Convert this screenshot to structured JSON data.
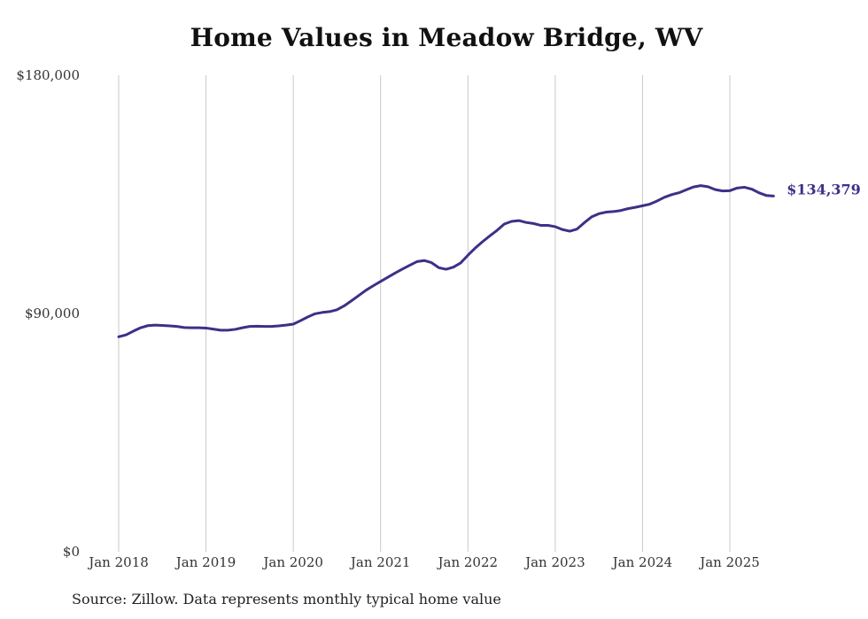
{
  "chart_data": {
    "type": "line",
    "title": "Home Values in Meadow Bridge, WV",
    "xlabel": "",
    "ylabel": "",
    "ylim": [
      0,
      180000
    ],
    "yticks": [
      0,
      90000,
      180000
    ],
    "ytick_labels": [
      "$0",
      "$90,000",
      "$180,000"
    ],
    "xticks": [
      "2018-01",
      "2019-01",
      "2020-01",
      "2021-01",
      "2022-01",
      "2023-01",
      "2024-01",
      "2025-01"
    ],
    "xtick_labels": [
      "Jan 2018",
      "Jan 2019",
      "Jan 2020",
      "Jan 2021",
      "Jan 2022",
      "Jan 2023",
      "Jan 2024",
      "Jan 2025"
    ],
    "grid": "vertical",
    "line_color": "#3b3187",
    "end_label": "$134,379",
    "series": [
      {
        "x": [
          "2018-01",
          "2018-02",
          "2018-03",
          "2018-04",
          "2018-05",
          "2018-06",
          "2018-07",
          "2018-08",
          "2018-09",
          "2018-10",
          "2018-11",
          "2018-12",
          "2019-01",
          "2019-02",
          "2019-03",
          "2019-04",
          "2019-05",
          "2019-06",
          "2019-07",
          "2019-08",
          "2019-09",
          "2019-10",
          "2019-11",
          "2019-12",
          "2020-01",
          "2020-02",
          "2020-03",
          "2020-04",
          "2020-05",
          "2020-06",
          "2020-07",
          "2020-08",
          "2020-09",
          "2020-10",
          "2020-11",
          "2020-12",
          "2021-01",
          "2021-02",
          "2021-03",
          "2021-04",
          "2021-05",
          "2021-06",
          "2021-07",
          "2021-08",
          "2021-09",
          "2021-10",
          "2021-11",
          "2021-12",
          "2022-01",
          "2022-02",
          "2022-03",
          "2022-04",
          "2022-05",
          "2022-06",
          "2022-07",
          "2022-08",
          "2022-09",
          "2022-10",
          "2022-11",
          "2022-12",
          "2023-01",
          "2023-02",
          "2023-03",
          "2023-04",
          "2023-05",
          "2023-06",
          "2023-07",
          "2023-08",
          "2023-09",
          "2023-10",
          "2023-11",
          "2023-12",
          "2024-01",
          "2024-02",
          "2024-03",
          "2024-04",
          "2024-05",
          "2024-06",
          "2024-07",
          "2024-08",
          "2024-09",
          "2024-10",
          "2024-11",
          "2024-12",
          "2025-01",
          "2025-02",
          "2025-03",
          "2025-04",
          "2025-05",
          "2025-06",
          "2025-07"
        ],
        "values": [
          81200,
          81900,
          83300,
          84600,
          85400,
          85600,
          85500,
          85300,
          85100,
          84700,
          84600,
          84600,
          84500,
          84100,
          83700,
          83700,
          84000,
          84600,
          85100,
          85200,
          85100,
          85100,
          85300,
          85600,
          86000,
          87300,
          88700,
          89900,
          90400,
          90700,
          91400,
          92900,
          94800,
          96800,
          98800,
          100500,
          102100,
          103700,
          105300,
          106800,
          108200,
          109600,
          110000,
          109200,
          107300,
          106700,
          107500,
          109100,
          112000,
          114700,
          117100,
          119300,
          121400,
          123800,
          124800,
          125100,
          124400,
          124000,
          123300,
          123300,
          122800,
          121700,
          121100,
          121900,
          124300,
          126500,
          127700,
          128300,
          128500,
          128900,
          129600,
          130100,
          130700,
          131300,
          132500,
          133900,
          134900,
          135600,
          136700,
          137800,
          138300,
          137900,
          136800,
          136300,
          136400,
          137400,
          137700,
          137000,
          135600,
          134600,
          134379
        ]
      }
    ]
  },
  "footer": {
    "source": "Source: Zillow. Data represents monthly typical home value"
  }
}
